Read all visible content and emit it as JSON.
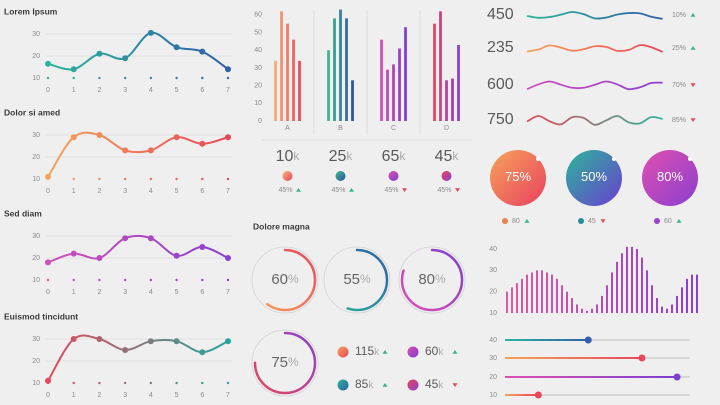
{
  "chart_data": [
    {
      "type": "line",
      "title": "Lorem Ipsum",
      "x": [
        0,
        1,
        2,
        3,
        4,
        5,
        6,
        7
      ],
      "values": [
        16.5,
        14,
        21,
        19,
        30.5,
        24,
        22,
        14
      ],
      "colors": [
        "#2bb59a",
        "#2e5fa8"
      ],
      "xlim": [
        0,
        7
      ],
      "xticks": [
        0,
        1,
        2,
        3,
        4,
        5,
        6,
        7
      ],
      "ylim": [
        10,
        35
      ],
      "yticks": [
        10,
        20,
        30
      ]
    },
    {
      "type": "line",
      "title": "Dolor si amed",
      "x": [
        0,
        1,
        2,
        3,
        4,
        5,
        6,
        7
      ],
      "values": [
        11,
        29,
        30,
        23,
        23,
        29,
        26,
        29
      ],
      "colors": [
        "#f7a35a",
        "#e8465a"
      ],
      "xlim": [
        0,
        7
      ],
      "xticks": [
        0,
        1,
        2,
        3,
        4,
        5,
        6,
        7
      ],
      "ylim": [
        10,
        35
      ],
      "yticks": [
        10,
        20,
        30
      ]
    },
    {
      "type": "line",
      "title": "Sed diam",
      "x": [
        0,
        1,
        2,
        3,
        4,
        5,
        6,
        7
      ],
      "values": [
        18,
        22,
        20,
        29,
        29,
        21,
        25,
        20
      ],
      "colors": [
        "#d14fb8",
        "#8a3fd0"
      ],
      "xlim": [
        0,
        7
      ],
      "xticks": [
        0,
        1,
        2,
        3,
        4,
        5,
        6,
        7
      ],
      "ylim": [
        10,
        35
      ],
      "yticks": [
        10,
        20,
        30
      ]
    },
    {
      "type": "line",
      "title": "Euismod tincidunt",
      "x": [
        0,
        1,
        2,
        3,
        4,
        5,
        6,
        7
      ],
      "values": [
        11,
        30,
        30,
        25,
        29,
        29,
        24,
        29
      ],
      "colors": [
        "#e8465a",
        "#26a69a"
      ],
      "xlim": [
        0,
        7
      ],
      "xticks": [
        0,
        1,
        2,
        3,
        4,
        5,
        6,
        7
      ],
      "ylim": [
        10,
        35
      ],
      "yticks": [
        10,
        20,
        30
      ]
    },
    {
      "type": "grouped-bar",
      "categories": [
        "A",
        "B",
        "C",
        "D"
      ],
      "values": [
        [
          34,
          62,
          55,
          46,
          34
        ],
        [
          40,
          58,
          63,
          58,
          23
        ],
        [
          46,
          29,
          32,
          41,
          53
        ],
        [
          55,
          62,
          23,
          24,
          43
        ]
      ],
      "colors": [
        [
          "#f7b27a",
          "#e8465a"
        ],
        [
          "#3fbf8f",
          "#2e4f9e"
        ],
        [
          "#e04fb0",
          "#7a3fd0"
        ],
        [
          "#e8465a",
          "#8a3fd0"
        ]
      ],
      "ylim": [
        0,
        65
      ],
      "yticks": [
        0,
        10,
        20,
        30,
        40,
        50,
        60
      ]
    },
    {
      "type": "bar",
      "values": [
        20,
        22,
        24,
        26,
        28,
        29,
        30,
        30,
        29,
        28,
        26,
        23,
        20,
        17,
        14,
        12,
        11,
        12,
        14,
        18,
        23,
        29,
        34,
        38,
        41,
        41,
        40,
        36,
        30,
        23,
        17,
        13,
        12,
        14,
        18,
        22,
        26,
        28,
        28
      ],
      "colors": [
        "#e05aa0",
        "#8a3fd0"
      ],
      "ylim": [
        10,
        42
      ],
      "yticks": [
        10,
        20,
        30,
        40
      ]
    }
  ],
  "stats": [
    {
      "number": 10,
      "suffix": "k",
      "change": "45%",
      "direction": "up",
      "colors": [
        "#f7b27a",
        "#e8465a"
      ]
    },
    {
      "number": 25,
      "suffix": "k",
      "change": "45%",
      "direction": "up",
      "colors": [
        "#3fbf8f",
        "#2e4f9e"
      ]
    },
    {
      "number": 65,
      "suffix": "k",
      "change": "45%",
      "direction": "down",
      "colors": [
        "#e04fb0",
        "#7a3fd0"
      ]
    },
    {
      "number": 45,
      "suffix": "k",
      "change": "45%",
      "direction": "down",
      "colors": [
        "#e8465a",
        "#8a3fd0"
      ]
    }
  ],
  "gauges": {
    "title": "Dolore magna",
    "items": [
      {
        "value": 60,
        "unit": "%",
        "colors": [
          "#f7a35a",
          "#e8465a"
        ]
      },
      {
        "value": 55,
        "unit": "%",
        "colors": [
          "#2bb59a",
          "#2e5fa8"
        ]
      },
      {
        "value": 80,
        "unit": "%",
        "colors": [
          "#e04fb0",
          "#7a3fd0"
        ]
      },
      {
        "value": 75,
        "unit": "%",
        "colors": [
          "#e8465a",
          "#8a3fd0"
        ]
      }
    ]
  },
  "gauge_stats": [
    {
      "number": 115,
      "suffix": "k",
      "direction": "up",
      "colors": [
        "#f7a35a",
        "#e8465a"
      ]
    },
    {
      "number": 60,
      "suffix": "k",
      "direction": "up",
      "colors": [
        "#e04fb0",
        "#7a3fd0"
      ]
    },
    {
      "number": 85,
      "suffix": "k",
      "direction": "up",
      "colors": [
        "#2bb59a",
        "#2e5fa8"
      ]
    },
    {
      "number": 45,
      "suffix": "k",
      "direction": "down",
      "colors": [
        "#e8465a",
        "#8a3fd0"
      ]
    }
  ],
  "sparklines": [
    {
      "label": 450,
      "change": "10%",
      "direction": "up",
      "colors": [
        "#2bb59a",
        "#2e5fa8"
      ]
    },
    {
      "label": 235,
      "change": "25%",
      "direction": "up",
      "colors": [
        "#f7a35a",
        "#e8465a"
      ]
    },
    {
      "label": 600,
      "change": "70%",
      "direction": "down",
      "colors": [
        "#d14fb8",
        "#8a3fd0"
      ]
    },
    {
      "label": 750,
      "change": "85%",
      "direction": "down",
      "colors": [
        "#e8465a",
        "#2bb59a"
      ]
    }
  ],
  "circle_stats": [
    {
      "value": 75,
      "unit": "%",
      "colors": [
        "#f7a35a",
        "#e84060"
      ],
      "legend": 80,
      "direction": "up",
      "dot": "#f08050"
    },
    {
      "value": 50,
      "unit": "%",
      "colors": [
        "#2bb59a",
        "#6a3fd0"
      ],
      "legend": 45,
      "direction": "down",
      "dot": "#2a8a9a"
    },
    {
      "value": 80,
      "unit": "%",
      "colors": [
        "#e04fb0",
        "#8a3fd0"
      ],
      "legend": 60,
      "direction": "up",
      "dot": "#a040d0"
    }
  ],
  "sliders": {
    "xlim": [
      0,
      100
    ],
    "items": [
      {
        "label": 40,
        "value": 45,
        "colors": [
          "#2bb59a",
          "#2e5fa8"
        ]
      },
      {
        "label": 30,
        "value": 74,
        "colors": [
          "#f7a35a",
          "#e8465a"
        ]
      },
      {
        "label": 20,
        "value": 93,
        "colors": [
          "#e04fb0",
          "#7a3fd0"
        ]
      },
      {
        "label": 10,
        "value": 18,
        "colors": [
          "#f7a35a",
          "#e8465a"
        ]
      }
    ]
  },
  "arrow_colors": {
    "up": "#3bb08f",
    "down": "#e8465a"
  }
}
